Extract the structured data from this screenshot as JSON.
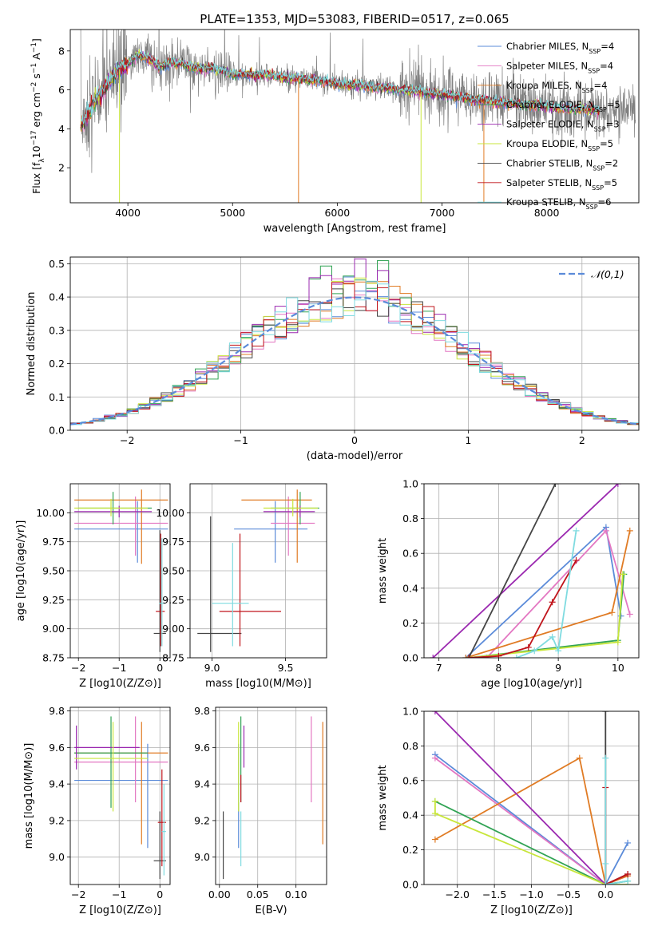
{
  "figure": {
    "title": "PLATE=1353, MJD=53083, FIBERID=0517, z=0.065"
  },
  "colors": {
    "Chabrier MILES": "#5b8bd9",
    "Salpeter MILES": "#e377c2",
    "Kroupa MILES": "#e07b24",
    "Chabrier ELODIE": "#31a354",
    "Salpeter ELODIE": "#9b29b0",
    "Kroupa ELODIE": "#c8e63b",
    "Chabrier STELIB": "#444444",
    "Salpeter STELIB": "#c0141b",
    "Kroupa STELIB": "#7fdbe0",
    "data": "#808080"
  },
  "chart_data": [
    {
      "id": "spectrum",
      "type": "line",
      "xlabel": "wavelength [Angstrom, rest frame]",
      "ylabel": "Flux [f_λ10^-17 erg cm^-2 s^-1 A^-1]",
      "xlim": [
        3450,
        8880
      ],
      "ylim": [
        0.2,
        9.1
      ],
      "xticks": [
        4000,
        5000,
        6000,
        7000,
        8000
      ],
      "yticks": [
        2,
        4,
        6,
        8
      ],
      "grid": false,
      "legend_position": "top-right",
      "legend": [
        {
          "label": "Chabrier MILES, N",
          "sub": "SSP",
          "tail": "=4",
          "color_key": "Chabrier MILES"
        },
        {
          "label": "Salpeter MILES, N",
          "sub": "SSP",
          "tail": "=4",
          "color_key": "Salpeter MILES"
        },
        {
          "label": "Kroupa MILES, N",
          "sub": "SSP",
          "tail": "=4",
          "color_key": "Kroupa MILES"
        },
        {
          "label": "Chabrier ELODIE, N",
          "sub": "SSP",
          "tail": "=5",
          "color_key": "Chabrier ELODIE"
        },
        {
          "label": "Salpeter ELODIE, N",
          "sub": "SSP",
          "tail": "=3",
          "color_key": "Salpeter ELODIE"
        },
        {
          "label": "Kroupa ELODIE, N",
          "sub": "SSP",
          "tail": "=5",
          "color_key": "Kroupa ELODIE"
        },
        {
          "label": "Chabrier STELIB, N",
          "sub": "SSP",
          "tail": "=2",
          "color_key": "Chabrier STELIB"
        },
        {
          "label": "Salpeter STELIB, N",
          "sub": "SSP",
          "tail": "=5",
          "color_key": "Salpeter STELIB"
        },
        {
          "label": "Kroupa STELIB, N",
          "sub": "SSP",
          "tail": "=6",
          "color_key": "Kroupa STELIB"
        }
      ],
      "continuum": [
        [
          3550,
          4.2
        ],
        [
          3600,
          4.6
        ],
        [
          3700,
          5.5
        ],
        [
          3800,
          6.3
        ],
        [
          3900,
          7.0
        ],
        [
          4000,
          7.3
        ],
        [
          4100,
          7.8
        ],
        [
          4200,
          7.6
        ],
        [
          4300,
          7.2
        ],
        [
          4400,
          7.35
        ],
        [
          4500,
          7.4
        ],
        [
          4600,
          7.2
        ],
        [
          4700,
          7.1
        ],
        [
          4800,
          7.1
        ],
        [
          4900,
          7.0
        ],
        [
          5000,
          6.8
        ],
        [
          5100,
          6.85
        ],
        [
          5200,
          6.75
        ],
        [
          5300,
          6.8
        ],
        [
          5400,
          6.7
        ],
        [
          5500,
          6.6
        ],
        [
          5600,
          6.6
        ],
        [
          5700,
          6.55
        ],
        [
          5800,
          6.5
        ],
        [
          5900,
          6.4
        ],
        [
          6000,
          6.3
        ],
        [
          6100,
          6.25
        ],
        [
          6200,
          6.2
        ],
        [
          6300,
          6.15
        ],
        [
          6400,
          6.1
        ],
        [
          6500,
          6.1
        ],
        [
          6600,
          6.0
        ],
        [
          6700,
          6.0
        ],
        [
          6800,
          5.9
        ],
        [
          6900,
          5.8
        ],
        [
          7000,
          5.75
        ],
        [
          7100,
          5.7
        ],
        [
          7200,
          5.6
        ],
        [
          7300,
          5.5
        ],
        [
          7400,
          5.45
        ],
        [
          7500,
          5.4
        ],
        [
          7600,
          5.3
        ],
        [
          7700,
          5.3
        ],
        [
          7800,
          5.25
        ],
        [
          7900,
          5.2
        ],
        [
          8000,
          5.15
        ],
        [
          8100,
          5.1
        ],
        [
          8200,
          5.05
        ],
        [
          8300,
          5.0
        ],
        [
          8400,
          5.0
        ],
        [
          8500,
          4.95
        ]
      ],
      "model_span": [
        3550,
        8500
      ],
      "data_span": [
        3550,
        8850
      ]
    },
    {
      "id": "residuals",
      "type": "histogram",
      "xlabel": "(data-model)/error",
      "ylabel": "Normed distribution",
      "xlim": [
        -2.5,
        2.5
      ],
      "ylim": [
        0,
        0.52
      ],
      "xticks": [
        -2,
        -1,
        0,
        1,
        2
      ],
      "yticks": [
        0.0,
        0.1,
        0.2,
        0.3,
        0.4,
        0.5
      ],
      "grid": true,
      "bin_width": 0.1,
      "reference_curve": {
        "label": "𝒩(0,1)",
        "mean": 0,
        "sigma": 1,
        "color": "#5b8bd9"
      },
      "legend_position": "top-right"
    },
    {
      "id": "age_vs_Z",
      "type": "errorbar",
      "xlabel": "Z [log10(Z/Z⊙)]",
      "ylabel": "age  [log10(age/yr)]",
      "xlim": [
        -2.2,
        0.25
      ],
      "ylim": [
        8.75,
        10.25
      ],
      "xticks": [
        -2,
        -1,
        0
      ],
      "yticks": [
        8.75,
        9.0,
        9.25,
        9.5,
        9.75,
        10.0
      ],
      "grid": true,
      "points": [
        {
          "key": "Chabrier MILES",
          "x": -0.55,
          "xlo": -2.1,
          "xhi": 0.2,
          "y": 9.86,
          "ylo": 9.57,
          "yhi": 10.1
        },
        {
          "key": "Salpeter MILES",
          "x": -0.6,
          "xlo": -2.1,
          "xhi": 0.2,
          "y": 9.91,
          "ylo": 9.63,
          "yhi": 10.14
        },
        {
          "key": "Kroupa MILES",
          "x": -0.45,
          "xlo": -2.1,
          "xhi": 0.2,
          "y": 10.11,
          "ylo": 9.56,
          "yhi": 10.2
        },
        {
          "key": "Chabrier ELODIE",
          "x": -1.15,
          "xlo": -2.0,
          "xhi": -0.2,
          "y": 10.04,
          "ylo": 9.9,
          "yhi": 10.18
        },
        {
          "key": "Salpeter ELODIE",
          "x": -1.0,
          "xlo": -2.1,
          "xhi": -0.2,
          "y": 10.01,
          "ylo": 9.96,
          "yhi": 10.06
        },
        {
          "key": "Kroupa ELODIE",
          "x": -1.2,
          "xlo": -2.1,
          "xhi": -0.3,
          "y": 10.04,
          "ylo": 9.97,
          "yhi": 10.12
        },
        {
          "key": "Chabrier STELIB",
          "x": 0.0,
          "xlo": -0.15,
          "xhi": 0.15,
          "y": 8.96,
          "ylo": 8.8,
          "yhi": 9.85
        },
        {
          "key": "Salpeter STELIB",
          "x": 0.02,
          "xlo": -0.1,
          "xhi": 0.12,
          "y": 9.15,
          "ylo": 8.85,
          "yhi": 9.82
        },
        {
          "key": "Kroupa STELIB",
          "x": 0.05,
          "xlo": -0.02,
          "xhi": 0.12,
          "y": 9.22,
          "ylo": 8.85,
          "yhi": 9.78
        }
      ]
    },
    {
      "id": "age_vs_mass",
      "type": "errorbar",
      "xlabel": "mass [log10(M/M⊙)]",
      "ylabel": "",
      "xlim": [
        8.85,
        9.78
      ],
      "ylim": [
        8.75,
        10.25
      ],
      "xticks": [
        9.0,
        9.5
      ],
      "yticks": [
        8.75,
        9.0,
        9.25,
        9.5,
        9.75,
        10.0
      ],
      "grid": true,
      "points": [
        {
          "key": "Chabrier MILES",
          "x": 9.43,
          "xlo": 9.15,
          "xhi": 9.65,
          "y": 9.86,
          "ylo": 9.57,
          "yhi": 10.1
        },
        {
          "key": "Salpeter MILES",
          "x": 9.52,
          "xlo": 9.4,
          "xhi": 9.7,
          "y": 9.91,
          "ylo": 9.63,
          "yhi": 10.14
        },
        {
          "key": "Kroupa MILES",
          "x": 9.58,
          "xlo": 9.2,
          "xhi": 9.68,
          "y": 10.11,
          "ylo": 9.57,
          "yhi": 10.2
        },
        {
          "key": "Chabrier ELODIE",
          "x": 9.6,
          "xlo": 9.4,
          "xhi": 9.73,
          "y": 10.04,
          "ylo": 9.9,
          "yhi": 10.18
        },
        {
          "key": "Salpeter ELODIE",
          "x": 9.6,
          "xlo": 9.35,
          "xhi": 9.7,
          "y": 10.01,
          "ylo": 9.96,
          "yhi": 10.06
        },
        {
          "key": "Kroupa ELODIE",
          "x": 9.55,
          "xlo": 9.35,
          "xhi": 9.72,
          "y": 10.04,
          "ylo": 9.97,
          "yhi": 10.12
        },
        {
          "key": "Chabrier STELIB",
          "x": 8.99,
          "xlo": 8.9,
          "xhi": 9.2,
          "y": 8.96,
          "ylo": 8.8,
          "yhi": 9.97
        },
        {
          "key": "Salpeter STELIB",
          "x": 9.19,
          "xlo": 9.05,
          "xhi": 9.47,
          "y": 9.15,
          "ylo": 8.85,
          "yhi": 9.82
        },
        {
          "key": "Kroupa STELIB",
          "x": 9.14,
          "xlo": 9.0,
          "xhi": 9.25,
          "y": 9.22,
          "ylo": 8.85,
          "yhi": 9.74
        }
      ]
    },
    {
      "id": "weight_vs_age",
      "type": "line",
      "xlabel": "age  [log10(age/yr)]",
      "ylabel": "mass weight",
      "xlim": [
        6.75,
        10.35
      ],
      "ylim": [
        0,
        1.0
      ],
      "xticks": [
        7,
        8,
        9,
        10
      ],
      "yticks": [
        0.0,
        0.2,
        0.4,
        0.6,
        0.8,
        1.0
      ],
      "grid": true,
      "series": [
        {
          "key": "Chabrier MILES",
          "x": [
            7.45,
            9.8,
            10.05
          ],
          "y": [
            0.0,
            0.75,
            0.24
          ]
        },
        {
          "key": "Salpeter MILES",
          "x": [
            7.8,
            9.8,
            10.2
          ],
          "y": [
            0.0,
            0.73,
            0.25
          ]
        },
        {
          "key": "Kroupa MILES",
          "x": [
            7.45,
            9.9,
            10.2
          ],
          "y": [
            0.0,
            0.26,
            0.73
          ]
        },
        {
          "key": "Chabrier ELODIE",
          "x": [
            7.5,
            10.0,
            10.1
          ],
          "y": [
            0.0,
            0.1,
            0.48
          ]
        },
        {
          "key": "Salpeter ELODIE",
          "x": [
            6.9,
            10.0
          ],
          "y": [
            0.0,
            1.0
          ]
        },
        {
          "key": "Kroupa ELODIE",
          "x": [
            7.5,
            10.0,
            10.08
          ],
          "y": [
            0.0,
            0.09,
            0.48
          ]
        },
        {
          "key": "Chabrier STELIB",
          "x": [
            7.5,
            8.95
          ],
          "y": [
            0.0,
            1.0
          ]
        },
        {
          "key": "Salpeter STELIB",
          "x": [
            7.5,
            8.0,
            8.5,
            8.9,
            9.3
          ],
          "y": [
            0.0,
            0.01,
            0.06,
            0.32,
            0.56
          ]
        },
        {
          "key": "Kroupa STELIB",
          "x": [
            8.3,
            8.6,
            8.9,
            9.0,
            9.3
          ],
          "y": [
            0.0,
            0.04,
            0.12,
            0.04,
            0.73
          ]
        }
      ]
    },
    {
      "id": "mass_vs_Z",
      "type": "errorbar",
      "xlabel": "Z [log10(Z/Z⊙)]",
      "ylabel": "mass [log10(M/M⊙)]",
      "xlim": [
        -2.2,
        0.25
      ],
      "ylim": [
        8.85,
        9.82
      ],
      "xticks": [
        -2,
        -1,
        0
      ],
      "yticks": [
        9.0,
        9.2,
        9.4,
        9.6,
        9.8
      ],
      "grid": true,
      "points": [
        {
          "key": "Chabrier MILES",
          "x": -0.3,
          "xlo": -2.1,
          "xhi": 0.2,
          "y": 9.42,
          "ylo": 9.05,
          "yhi": 9.62
        },
        {
          "key": "Salpeter MILES",
          "x": -0.6,
          "xlo": -2.1,
          "xhi": 0.2,
          "y": 9.52,
          "ylo": 9.3,
          "yhi": 9.77
        },
        {
          "key": "Kroupa MILES",
          "x": -0.45,
          "xlo": -2.1,
          "xhi": 0.2,
          "y": 9.57,
          "ylo": 9.07,
          "yhi": 9.74
        },
        {
          "key": "Chabrier ELODIE",
          "x": -1.2,
          "xlo": -2.1,
          "xhi": -0.3,
          "y": 9.57,
          "ylo": 9.27,
          "yhi": 9.77
        },
        {
          "key": "Salpeter ELODIE",
          "x": -2.05,
          "xlo": -2.1,
          "xhi": -0.5,
          "y": 9.6,
          "ylo": 9.48,
          "yhi": 9.72
        },
        {
          "key": "Kroupa ELODIE",
          "x": -1.15,
          "xlo": -2.1,
          "xhi": -0.3,
          "y": 9.54,
          "ylo": 9.25,
          "yhi": 9.74
        },
        {
          "key": "Chabrier STELIB",
          "x": 0.0,
          "xlo": -0.15,
          "xhi": 0.15,
          "y": 8.98,
          "ylo": 8.88,
          "yhi": 9.25
        },
        {
          "key": "Salpeter STELIB",
          "x": 0.05,
          "xlo": -0.05,
          "xhi": 0.15,
          "y": 9.19,
          "ylo": 8.95,
          "yhi": 9.48
        },
        {
          "key": "Kroupa STELIB",
          "x": 0.1,
          "xlo": 0.05,
          "xhi": 0.15,
          "y": 9.14,
          "ylo": 8.9,
          "yhi": 9.4
        }
      ]
    },
    {
      "id": "mass_vs_EBV",
      "type": "errorbar",
      "xlabel": "E(B-V)",
      "ylabel": "",
      "xlim": [
        -0.005,
        0.14
      ],
      "ylim": [
        8.85,
        9.82
      ],
      "xticks": [
        0.0,
        0.05,
        0.1
      ],
      "yticks": [
        9.0,
        9.2,
        9.4,
        9.6,
        9.8
      ],
      "grid": true,
      "points": [
        {
          "key": "Chabrier MILES",
          "x": 0.025,
          "y": 9.42,
          "ylo": 9.05,
          "yhi": 9.62
        },
        {
          "key": "Salpeter MILES",
          "x": 0.12,
          "y": 9.52,
          "ylo": 9.3,
          "yhi": 9.77
        },
        {
          "key": "Kroupa MILES",
          "x": 0.135,
          "y": 9.57,
          "ylo": 9.07,
          "yhi": 9.74
        },
        {
          "key": "Chabrier ELODIE",
          "x": 0.028,
          "y": 9.57,
          "ylo": 9.3,
          "yhi": 9.77
        },
        {
          "key": "Salpeter ELODIE",
          "x": 0.032,
          "y": 9.6,
          "ylo": 9.49,
          "yhi": 9.72
        },
        {
          "key": "Kroupa ELODIE",
          "x": 0.025,
          "y": 9.54,
          "ylo": 9.25,
          "yhi": 9.74
        },
        {
          "key": "Chabrier STELIB",
          "x": 0.005,
          "y": 8.98,
          "ylo": 8.88,
          "yhi": 9.25
        },
        {
          "key": "Salpeter STELIB",
          "x": 0.028,
          "y": 9.19,
          "ylo": 9.3,
          "yhi": 9.45
        },
        {
          "key": "Kroupa STELIB",
          "x": 0.028,
          "y": 9.14,
          "ylo": 8.95,
          "yhi": 9.25
        }
      ]
    },
    {
      "id": "weight_vs_Z",
      "type": "line",
      "xlabel": "Z [log10(Z/Z⊙)]",
      "ylabel": "mass weight",
      "xlim": [
        -2.45,
        0.45
      ],
      "ylim": [
        0,
        1.0
      ],
      "xticks": [
        -2.0,
        -1.5,
        -1.0,
        -0.5,
        0.0
      ],
      "yticks": [
        0.0,
        0.2,
        0.4,
        0.6,
        0.8,
        1.0
      ],
      "grid": true,
      "series": [
        {
          "key": "Chabrier MILES",
          "x": [
            -2.3,
            0.0,
            0.3
          ],
          "y": [
            0.75,
            0.0,
            0.24
          ]
        },
        {
          "key": "Salpeter MILES",
          "x": [
            -2.3,
            0.0,
            0.3
          ],
          "y": [
            0.73,
            0.0,
            0.05
          ]
        },
        {
          "key": "Kroupa MILES",
          "x": [
            -2.3,
            -0.35,
            0.0,
            0.3
          ],
          "y": [
            0.26,
            0.73,
            0.0,
            0.05
          ]
        },
        {
          "key": "Chabrier ELODIE",
          "x": [
            -2.3,
            0.0,
            0.3
          ],
          "y": [
            0.48,
            0.0,
            0.02
          ]
        },
        {
          "key": "Salpeter ELODIE",
          "x": [
            -2.3,
            0.0
          ],
          "y": [
            1.0,
            0.0
          ]
        },
        {
          "key": "Kroupa ELODIE",
          "x": [
            -2.3,
            -2.3,
            0.0,
            0.3
          ],
          "y": [
            0.48,
            0.41,
            0.0,
            0.0
          ]
        },
        {
          "key": "Chabrier STELIB",
          "x": [
            0.0,
            0.0,
            0.3
          ],
          "y": [
            1.0,
            0.0,
            0.06
          ]
        },
        {
          "key": "Salpeter STELIB",
          "x": [
            0.0,
            0.0,
            0.3
          ],
          "y": [
            0.56,
            0.0,
            0.06
          ]
        },
        {
          "key": "Kroupa STELIB",
          "x": [
            0.0,
            0.0,
            0.0,
            0.3
          ],
          "y": [
            0.73,
            0.12,
            0.0,
            0.02
          ]
        }
      ]
    }
  ]
}
